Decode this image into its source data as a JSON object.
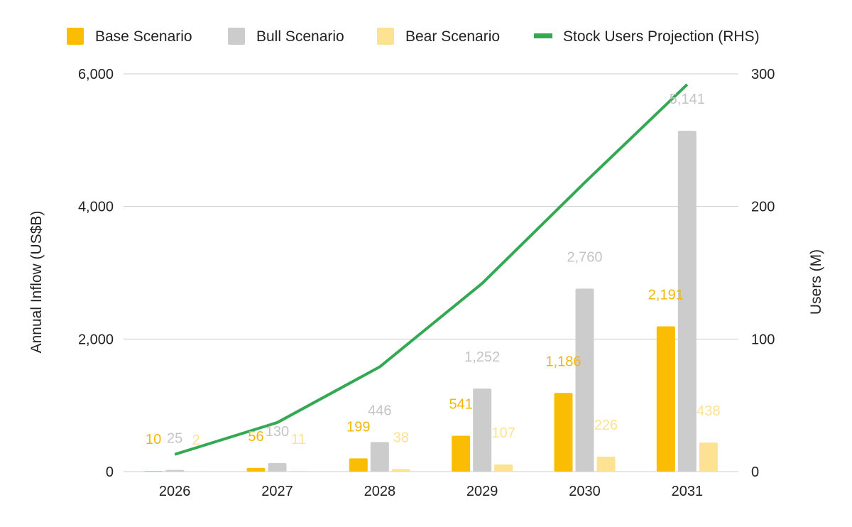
{
  "chart_data": {
    "type": "bar",
    "categories": [
      "2026",
      "2027",
      "2028",
      "2029",
      "2030",
      "2031"
    ],
    "series": [
      {
        "name": "Base Scenario",
        "type": "bar",
        "axis": "left",
        "color": "#fbbc04",
        "label_color": "#f2b705",
        "values": [
          10,
          56,
          199,
          541,
          1186,
          2191
        ],
        "labels": [
          "10",
          "56",
          "199",
          "541",
          "1,186",
          "2,191"
        ]
      },
      {
        "name": "Bull Scenario",
        "type": "bar",
        "axis": "left",
        "color": "#cccccc",
        "label_color": "#c4c4c4",
        "values": [
          25,
          130,
          446,
          1252,
          2760,
          5141
        ],
        "labels": [
          "25",
          "130",
          "446",
          "1,252",
          "2,760",
          "5,141"
        ]
      },
      {
        "name": "Bear Scenario",
        "type": "bar",
        "axis": "left",
        "color": "#fde293",
        "label_color": "#fde293",
        "values": [
          2,
          11,
          38,
          107,
          226,
          438
        ],
        "labels": [
          "2",
          "11",
          "38",
          "107",
          "226",
          "438"
        ]
      },
      {
        "name": "Stock Users Projection (RHS)",
        "type": "line",
        "axis": "right",
        "color": "#34a853",
        "values": [
          13,
          37,
          79,
          142,
          218,
          292
        ]
      }
    ],
    "ylabel": "Annual Inflow (US$B)",
    "y2label": "Users (M)",
    "ylim": [
      0,
      6000
    ],
    "y2lim": [
      0,
      300
    ],
    "yticks": [
      "0",
      "2,000",
      "4,000",
      "6,000"
    ],
    "y2ticks": [
      "0",
      "100",
      "200",
      "300"
    ],
    "grid": true,
    "legend_position": "top"
  }
}
